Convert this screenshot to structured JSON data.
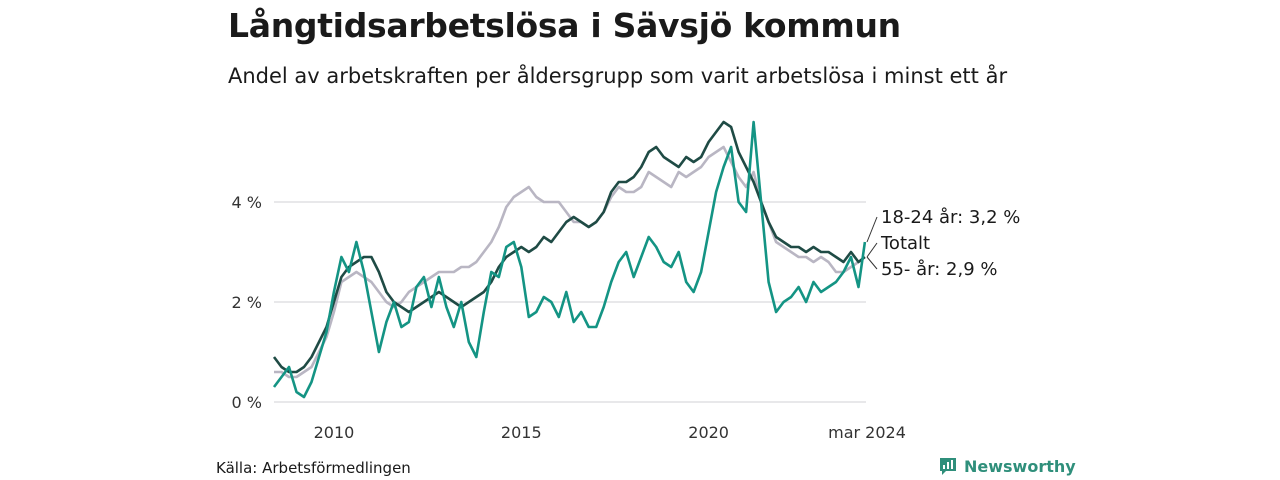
{
  "title": "Långtidsarbetslösa i Sävsjö kommun",
  "subtitle": "Andel av arbetskraften per åldersgrupp som varit arbetslösa i minst ett år",
  "source": "Källa: Arbetsförmedlingen",
  "brand": {
    "name": "Newsworthy",
    "icon": "newsworthy-logo-icon",
    "color": "#2f8f7b"
  },
  "chart_data": {
    "type": "line",
    "title": "Långtidsarbetslösa i Sävsjö kommun",
    "ylabel": "",
    "xlabel": "",
    "ylim": [
      0,
      6
    ],
    "xlim": [
      2008.4,
      2024.2
    ],
    "y_ticks": [
      0,
      2,
      4
    ],
    "y_tick_labels": [
      "0 %",
      "2 %",
      "4 %"
    ],
    "x_ticks": [
      2010,
      2015,
      2020,
      2024.17
    ],
    "x_tick_labels": [
      "2010",
      "2015",
      "2020",
      "mar 2024"
    ],
    "grid": "horizontal",
    "series": [
      {
        "name": "Totalt",
        "label": "Totalt",
        "color": "#1f4b45",
        "x": [
          2008.4,
          2008.6,
          2008.8,
          2009.0,
          2009.2,
          2009.4,
          2009.6,
          2009.8,
          2010.0,
          2010.2,
          2010.4,
          2010.6,
          2010.8,
          2011.0,
          2011.2,
          2011.4,
          2011.6,
          2011.8,
          2012.0,
          2012.2,
          2012.4,
          2012.6,
          2012.8,
          2013.0,
          2013.2,
          2013.4,
          2013.6,
          2013.8,
          2014.0,
          2014.2,
          2014.4,
          2014.6,
          2014.8,
          2015.0,
          2015.2,
          2015.4,
          2015.6,
          2015.8,
          2016.0,
          2016.2,
          2016.4,
          2016.6,
          2016.8,
          2017.0,
          2017.2,
          2017.4,
          2017.6,
          2017.8,
          2018.0,
          2018.2,
          2018.4,
          2018.6,
          2018.8,
          2019.0,
          2019.2,
          2019.4,
          2019.6,
          2019.8,
          2020.0,
          2020.2,
          2020.4,
          2020.6,
          2020.8,
          2021.0,
          2021.2,
          2021.4,
          2021.6,
          2021.8,
          2022.0,
          2022.2,
          2022.4,
          2022.6,
          2022.8,
          2023.0,
          2023.2,
          2023.4,
          2023.6,
          2023.8,
          2024.0,
          2024.17
        ],
        "values": [
          0.9,
          0.7,
          0.6,
          0.6,
          0.7,
          0.9,
          1.2,
          1.5,
          2.0,
          2.5,
          2.7,
          2.8,
          2.9,
          2.9,
          2.6,
          2.2,
          2.0,
          1.9,
          1.8,
          1.9,
          2.0,
          2.1,
          2.2,
          2.1,
          2.0,
          1.9,
          2.0,
          2.1,
          2.2,
          2.4,
          2.7,
          2.9,
          3.0,
          3.1,
          3.0,
          3.1,
          3.3,
          3.2,
          3.4,
          3.6,
          3.7,
          3.6,
          3.5,
          3.6,
          3.8,
          4.2,
          4.4,
          4.4,
          4.5,
          4.7,
          5.0,
          5.1,
          4.9,
          4.8,
          4.7,
          4.9,
          4.8,
          4.9,
          5.2,
          5.4,
          5.6,
          5.5,
          5.0,
          4.7,
          4.4,
          4.0,
          3.6,
          3.3,
          3.2,
          3.1,
          3.1,
          3.0,
          3.1,
          3.0,
          3.0,
          2.9,
          2.8,
          3.0,
          2.8,
          2.9
        ],
        "value_label": ""
      },
      {
        "name": "18-24 år",
        "label": "18-24 år: 3,2 %",
        "color": "#149484",
        "x": [
          2008.4,
          2008.6,
          2008.8,
          2009.0,
          2009.2,
          2009.4,
          2009.6,
          2009.8,
          2010.0,
          2010.2,
          2010.4,
          2010.6,
          2010.8,
          2011.0,
          2011.2,
          2011.4,
          2011.6,
          2011.8,
          2012.0,
          2012.2,
          2012.4,
          2012.6,
          2012.8,
          2013.0,
          2013.2,
          2013.4,
          2013.6,
          2013.8,
          2014.0,
          2014.2,
          2014.4,
          2014.6,
          2014.8,
          2015.0,
          2015.2,
          2015.4,
          2015.6,
          2015.8,
          2016.0,
          2016.2,
          2016.4,
          2016.6,
          2016.8,
          2017.0,
          2017.2,
          2017.4,
          2017.6,
          2017.8,
          2018.0,
          2018.2,
          2018.4,
          2018.6,
          2018.8,
          2019.0,
          2019.2,
          2019.4,
          2019.6,
          2019.8,
          2020.0,
          2020.2,
          2020.4,
          2020.6,
          2020.8,
          2021.0,
          2021.2,
          2021.4,
          2021.6,
          2021.8,
          2022.0,
          2022.2,
          2022.4,
          2022.6,
          2022.8,
          2023.0,
          2023.2,
          2023.4,
          2023.6,
          2023.8,
          2024.0,
          2024.17
        ],
        "values": [
          0.3,
          0.5,
          0.7,
          0.2,
          0.1,
          0.4,
          0.9,
          1.4,
          2.2,
          2.9,
          2.6,
          3.2,
          2.6,
          1.8,
          1.0,
          1.6,
          2.0,
          1.5,
          1.6,
          2.3,
          2.5,
          1.9,
          2.5,
          1.9,
          1.5,
          2.0,
          1.2,
          0.9,
          1.8,
          2.6,
          2.5,
          3.1,
          3.2,
          2.7,
          1.7,
          1.8,
          2.1,
          2.0,
          1.7,
          2.2,
          1.6,
          1.8,
          1.5,
          1.5,
          1.9,
          2.4,
          2.8,
          3.0,
          2.5,
          2.9,
          3.3,
          3.1,
          2.8,
          2.7,
          3.0,
          2.4,
          2.2,
          2.6,
          3.4,
          4.2,
          4.7,
          5.1,
          4.0,
          3.8,
          5.6,
          4.0,
          2.4,
          1.8,
          2.0,
          2.1,
          2.3,
          2.0,
          2.4,
          2.2,
          2.3,
          2.4,
          2.6,
          2.9,
          2.3,
          3.2
        ],
        "value_label": "3,2 %"
      },
      {
        "name": "55- år",
        "label": "55- år: 2,9 %",
        "color": "#b9b6c3",
        "x": [
          2008.4,
          2008.6,
          2008.8,
          2009.0,
          2009.2,
          2009.4,
          2009.6,
          2009.8,
          2010.0,
          2010.2,
          2010.4,
          2010.6,
          2010.8,
          2011.0,
          2011.2,
          2011.4,
          2011.6,
          2011.8,
          2012.0,
          2012.2,
          2012.4,
          2012.6,
          2012.8,
          2013.0,
          2013.2,
          2013.4,
          2013.6,
          2013.8,
          2014.0,
          2014.2,
          2014.4,
          2014.6,
          2014.8,
          2015.0,
          2015.2,
          2015.4,
          2015.6,
          2015.8,
          2016.0,
          2016.2,
          2016.4,
          2016.6,
          2016.8,
          2017.0,
          2017.2,
          2017.4,
          2017.6,
          2017.8,
          2018.0,
          2018.2,
          2018.4,
          2018.6,
          2018.8,
          2019.0,
          2019.2,
          2019.4,
          2019.6,
          2019.8,
          2020.0,
          2020.2,
          2020.4,
          2020.6,
          2020.8,
          2021.0,
          2021.2,
          2021.4,
          2021.6,
          2021.8,
          2022.0,
          2022.2,
          2022.4,
          2022.6,
          2022.8,
          2023.0,
          2023.2,
          2023.4,
          2023.6,
          2023.8,
          2024.0,
          2024.17
        ],
        "values": [
          0.6,
          0.6,
          0.5,
          0.5,
          0.6,
          0.7,
          1.0,
          1.3,
          1.8,
          2.4,
          2.5,
          2.6,
          2.5,
          2.4,
          2.2,
          2.0,
          1.9,
          2.0,
          2.2,
          2.3,
          2.4,
          2.5,
          2.6,
          2.6,
          2.6,
          2.7,
          2.7,
          2.8,
          3.0,
          3.2,
          3.5,
          3.9,
          4.1,
          4.2,
          4.3,
          4.1,
          4.0,
          4.0,
          4.0,
          3.8,
          3.6,
          3.6,
          3.5,
          3.6,
          3.8,
          4.1,
          4.3,
          4.2,
          4.2,
          4.3,
          4.6,
          4.5,
          4.4,
          4.3,
          4.6,
          4.5,
          4.6,
          4.7,
          4.9,
          5.0,
          5.1,
          4.8,
          4.5,
          4.3,
          4.6,
          4.0,
          3.6,
          3.2,
          3.1,
          3.0,
          2.9,
          2.9,
          2.8,
          2.9,
          2.8,
          2.6,
          2.6,
          2.7,
          2.8,
          2.9
        ],
        "value_label": "2,9 %"
      }
    ],
    "end_labels": [
      "18-24 år: 3,2 %",
      "Totalt",
      "55- år: 2,9 %"
    ]
  }
}
